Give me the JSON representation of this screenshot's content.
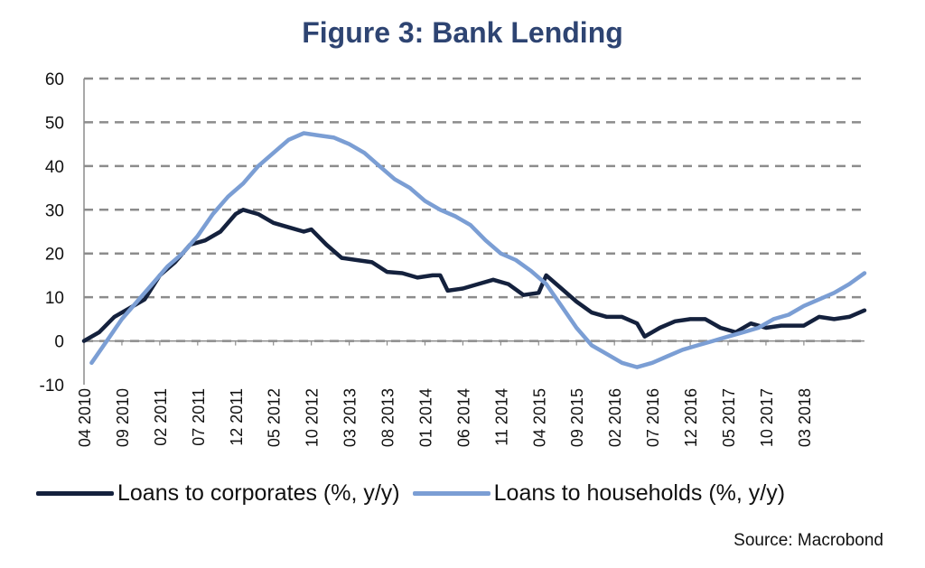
{
  "chart_data": {
    "type": "line",
    "title": "Figure 3: Bank Lending",
    "source": "Source: Macrobond",
    "ylim": [
      -10,
      60
    ],
    "yticks": [
      -10,
      0,
      10,
      20,
      30,
      40,
      50,
      60
    ],
    "grid": "horizontal dashed",
    "x_start": "2010-04",
    "x_end": "2018-03",
    "xtick_labels": [
      "04 2010",
      "09 2010",
      "02 2011",
      "07 2011",
      "12 2011",
      "05 2012",
      "10 2012",
      "03 2013",
      "08 2013",
      "01 2014",
      "06 2014",
      "11 2014",
      "04 2015",
      "09 2015",
      "02 2016",
      "07 2016",
      "12 2016",
      "05 2017",
      "10 2017",
      "03 2018"
    ],
    "legend_position": "bottom",
    "series": [
      {
        "name": "Loans to corporates (%, y/y)",
        "color": "#14213d",
        "points": [
          [
            "2010-04",
            0
          ],
          [
            "2010-06",
            2
          ],
          [
            "2010-08",
            5.5
          ],
          [
            "2010-10",
            7.5
          ],
          [
            "2010-12",
            9.5
          ],
          [
            "2011-02",
            15
          ],
          [
            "2011-04",
            18
          ],
          [
            "2011-06",
            22
          ],
          [
            "2011-08",
            23
          ],
          [
            "2011-10",
            25
          ],
          [
            "2011-12",
            29
          ],
          [
            "2012-01",
            30
          ],
          [
            "2012-03",
            29
          ],
          [
            "2012-05",
            27
          ],
          [
            "2012-07",
            26
          ],
          [
            "2012-09",
            25
          ],
          [
            "2012-10",
            25.5
          ],
          [
            "2012-12",
            22
          ],
          [
            "2013-02",
            19
          ],
          [
            "2013-04",
            18.5
          ],
          [
            "2013-06",
            18
          ],
          [
            "2013-08",
            15.8
          ],
          [
            "2013-10",
            15.5
          ],
          [
            "2013-12",
            14.5
          ],
          [
            "2014-02",
            15
          ],
          [
            "2014-03",
            15
          ],
          [
            "2014-04",
            11.5
          ],
          [
            "2014-06",
            12
          ],
          [
            "2014-08",
            13
          ],
          [
            "2014-10",
            14
          ],
          [
            "2014-12",
            13
          ],
          [
            "2015-02",
            10.5
          ],
          [
            "2015-04",
            11
          ],
          [
            "2015-05",
            15
          ],
          [
            "2015-07",
            12
          ],
          [
            "2015-09",
            9
          ],
          [
            "2015-11",
            6.5
          ],
          [
            "2016-01",
            5.5
          ],
          [
            "2016-03",
            5.5
          ],
          [
            "2016-05",
            4
          ],
          [
            "2016-06",
            1
          ],
          [
            "2016-08",
            3
          ],
          [
            "2016-10",
            4.5
          ],
          [
            "2016-12",
            5
          ],
          [
            "2017-02",
            5
          ],
          [
            "2017-04",
            3
          ],
          [
            "2017-06",
            2
          ],
          [
            "2017-08",
            4
          ],
          [
            "2017-10",
            3
          ],
          [
            "2017-12",
            3.5
          ],
          [
            "2018-02",
            3.5
          ],
          [
            "2018-03",
            3.5
          ],
          [
            "2018-05",
            5.5
          ],
          [
            "2018-07",
            5
          ],
          [
            "2018-09",
            5.5
          ],
          [
            "2018-11",
            7
          ]
        ]
      },
      {
        "name": "Loans to households (%, y/y)",
        "color": "#7b9ed4",
        "points": [
          [
            "2010-05",
            -5
          ],
          [
            "2010-07",
            0
          ],
          [
            "2010-09",
            5
          ],
          [
            "2010-11",
            9
          ],
          [
            "2011-01",
            13
          ],
          [
            "2011-03",
            17
          ],
          [
            "2011-05",
            20
          ],
          [
            "2011-07",
            24
          ],
          [
            "2011-09",
            29
          ],
          [
            "2011-11",
            33
          ],
          [
            "2012-01",
            36
          ],
          [
            "2012-03",
            40
          ],
          [
            "2012-05",
            43
          ],
          [
            "2012-07",
            46
          ],
          [
            "2012-09",
            47.5
          ],
          [
            "2012-11",
            47
          ],
          [
            "2013-01",
            46.5
          ],
          [
            "2013-03",
            45
          ],
          [
            "2013-05",
            43
          ],
          [
            "2013-07",
            40
          ],
          [
            "2013-09",
            37
          ],
          [
            "2013-11",
            35
          ],
          [
            "2014-01",
            32
          ],
          [
            "2014-03",
            30
          ],
          [
            "2014-05",
            28.5
          ],
          [
            "2014-07",
            26.5
          ],
          [
            "2014-09",
            23
          ],
          [
            "2014-11",
            20
          ],
          [
            "2015-01",
            18.5
          ],
          [
            "2015-03",
            16
          ],
          [
            "2015-05",
            13
          ],
          [
            "2015-07",
            8
          ],
          [
            "2015-09",
            3
          ],
          [
            "2015-11",
            -1
          ],
          [
            "2016-01",
            -3
          ],
          [
            "2016-03",
            -5
          ],
          [
            "2016-05",
            -6
          ],
          [
            "2016-07",
            -5
          ],
          [
            "2016-09",
            -3.5
          ],
          [
            "2016-11",
            -2
          ],
          [
            "2017-01",
            -1
          ],
          [
            "2017-03",
            0
          ],
          [
            "2017-05",
            1
          ],
          [
            "2017-07",
            2
          ],
          [
            "2017-09",
            3
          ],
          [
            "2017-11",
            5
          ],
          [
            "2018-01",
            6
          ],
          [
            "2018-03",
            8
          ],
          [
            "2018-05",
            9.5
          ],
          [
            "2018-07",
            11
          ],
          [
            "2018-09",
            13
          ],
          [
            "2018-11",
            15.5
          ]
        ]
      }
    ]
  }
}
